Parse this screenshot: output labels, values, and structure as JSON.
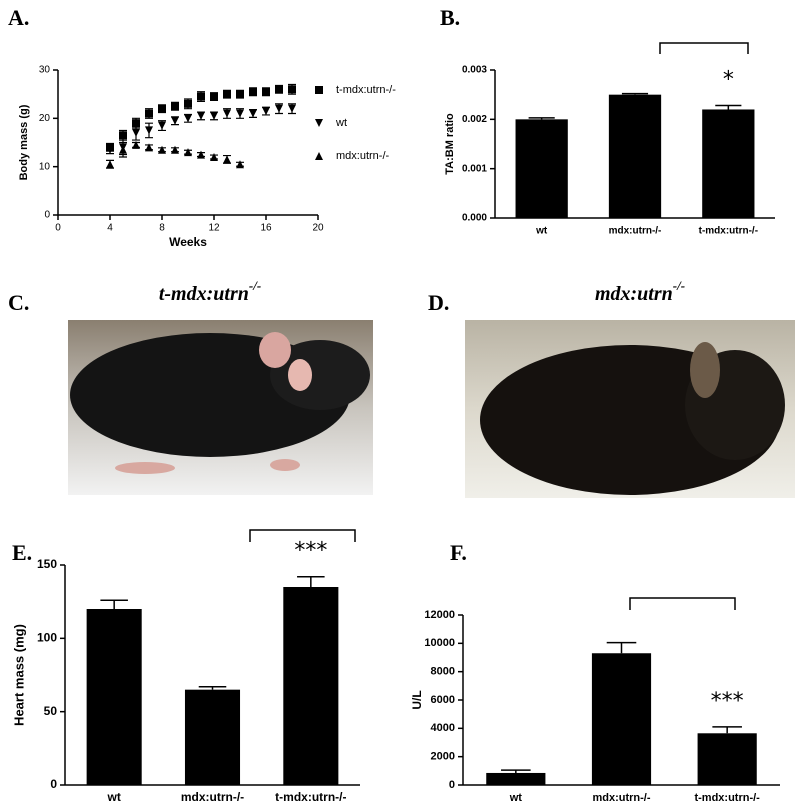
{
  "figure": {
    "panel_labels": [
      "A.",
      "B.",
      "C.",
      "D.",
      "E.",
      "F."
    ],
    "photo_captions": [
      {
        "text": "t-mdx:utrn",
        "sup": "-/-"
      },
      {
        "text": "mdx:utrn",
        "sup": "-/-"
      }
    ]
  },
  "chart_data": [
    {
      "type": "scatter",
      "xlabel": "Weeks",
      "ylabel": "Body mass (g)",
      "x": [
        4,
        5,
        6,
        7,
        8,
        9,
        10,
        11,
        12,
        13,
        14,
        15,
        16,
        17,
        18
      ],
      "xlim": [
        0,
        20
      ],
      "xticks": [
        0,
        4,
        8,
        12,
        16,
        20
      ],
      "ylim": [
        0,
        30
      ],
      "yticks": [
        0,
        10,
        20,
        30
      ],
      "legend": "right",
      "series": [
        {
          "name": "t-mdx:utrn-/-",
          "color": "#000000",
          "marker": "square",
          "values": [
            14,
            16.5,
            19,
            21,
            22,
            22.5,
            23,
            24.5,
            24.5,
            25,
            25,
            25.5,
            25.5,
            26,
            26
          ],
          "errors": [
            0.8,
            1,
            1,
            1,
            0.8,
            0.8,
            1,
            1,
            0.8,
            0.8,
            0.8,
            0.8,
            0.8,
            0.8,
            1
          ]
        },
        {
          "name": "wt",
          "color": "#000000",
          "marker": "triangle-down",
          "values": [
            13.5,
            14,
            17,
            17.5,
            18.5,
            19.5,
            20,
            20.5,
            20.5,
            21,
            21,
            21,
            21.5,
            22,
            22
          ],
          "errors": [
            0.8,
            1.5,
            1.5,
            1.5,
            1,
            0.8,
            0.8,
            0.8,
            0.8,
            1,
            1,
            0.8,
            0.8,
            1,
            1
          ]
        },
        {
          "name": "mdx:utrn-/-",
          "color": "#000000",
          "marker": "triangle-up",
          "values": [
            10.5,
            13.5,
            14.5,
            14,
            13.5,
            13.5,
            13,
            12.5,
            12,
            11.5,
            10.5,
            null,
            null,
            null,
            null
          ],
          "errors": [
            0.8,
            1.5,
            0.5,
            0.5,
            0.4,
            0.4,
            0.4,
            0.4,
            0.4,
            0.8,
            0.4,
            null,
            null,
            null,
            null
          ]
        }
      ]
    },
    {
      "type": "bar",
      "ylabel": "TA:BM ratio",
      "categories": [
        "wt",
        "mdx:utrn-/-",
        "t-mdx:utrn-/-"
      ],
      "values": [
        0.002,
        0.0025,
        0.0022
      ],
      "errors": [
        3e-05,
        2e-05,
        8e-05
      ],
      "color": "#000000",
      "ylim": [
        0,
        0.003
      ],
      "yticks": [
        {
          "value": 0,
          "label": "0.000"
        },
        {
          "value": 0.001,
          "label": "0.001"
        },
        {
          "value": 0.002,
          "label": "0.002"
        },
        {
          "value": 0.003,
          "label": "0.003"
        }
      ],
      "annotation": "*"
    },
    {
      "type": "bar",
      "ylabel": "Heart mass (mg)",
      "categories": [
        "wt",
        "mdx:utrn-/-",
        "t-mdx:utrn-/-"
      ],
      "values": [
        120,
        65,
        135
      ],
      "errors": [
        6,
        2,
        7
      ],
      "color": "#000000",
      "ylim": [
        0,
        150
      ],
      "yticks": [
        0,
        50,
        100,
        150
      ],
      "annotation": "***"
    },
    {
      "type": "bar",
      "ylabel": "U/L",
      "categories": [
        "wt",
        "mdx:utrn-/-",
        "t-mdx:utrn-/-"
      ],
      "values": [
        850,
        9300,
        3650
      ],
      "errors": [
        200,
        750,
        450
      ],
      "color": "#000000",
      "ylim": [
        0,
        12000
      ],
      "yticks": [
        0,
        2000,
        4000,
        6000,
        8000,
        10000,
        12000
      ],
      "annotation": "***"
    }
  ]
}
